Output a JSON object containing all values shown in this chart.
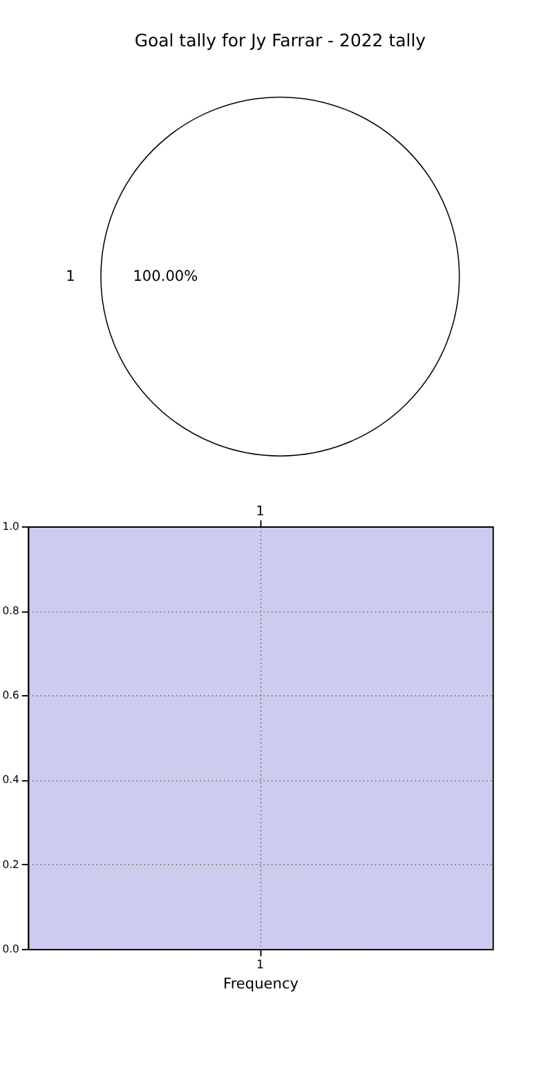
{
  "chart_data": [
    {
      "type": "pie",
      "title": "Goal tally for Jy Farrar - 2022 tally",
      "categories": [
        "1"
      ],
      "values": [
        100
      ],
      "colors": [
        "#ffffff"
      ],
      "value_labels": [
        "100.00%"
      ]
    },
    {
      "type": "bar",
      "categories": [
        "1"
      ],
      "values": [
        null
      ],
      "xlabel": "Frequency",
      "ylim": [
        0,
        1
      ],
      "yticks": [
        {
          "value": 0,
          "label": "0.0"
        },
        {
          "value": 0.2,
          "label": "0.2"
        },
        {
          "value": 0.4,
          "label": "0.4"
        },
        {
          "value": 0.6,
          "label": "0.6"
        },
        {
          "value": 0.8,
          "label": "0.8"
        },
        {
          "value": 1,
          "label": "1.0"
        }
      ],
      "grid": true
    }
  ]
}
